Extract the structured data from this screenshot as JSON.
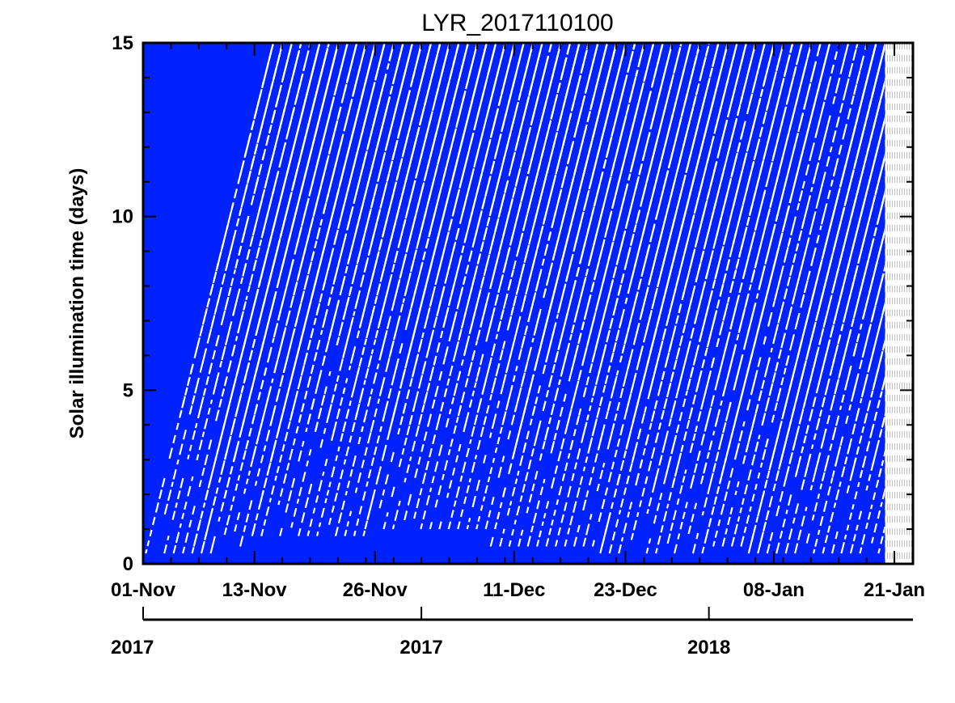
{
  "chart_data": {
    "type": "heatmap",
    "title": "LYR_2017110100",
    "ylabel": "Solar illumination time (days)",
    "xlabel": "",
    "x_start": "2017-11-01",
    "x_end": "2018-01-23",
    "ylim": [
      0,
      15
    ],
    "yticks": [
      0,
      5,
      10,
      15
    ],
    "y_minor_step": 1,
    "x_ticks": [
      {
        "label": "01-Nov",
        "date": "2017-11-01"
      },
      {
        "label": "13-Nov",
        "date": "2017-11-13"
      },
      {
        "label": "26-Nov",
        "date": "2017-11-26"
      },
      {
        "label": "11-Dec",
        "date": "2017-12-11"
      },
      {
        "label": "23-Dec",
        "date": "2017-12-23"
      },
      {
        "label": "08-Jan",
        "date": "2018-01-08"
      },
      {
        "label": "21-Jan",
        "date": "2018-01-21"
      }
    ],
    "year_axis": [
      {
        "label": "2017",
        "date": "2017-11-01"
      },
      {
        "label": "2017",
        "date": "2017-12-01"
      },
      {
        "label": "2018",
        "date": "2018-01-01"
      }
    ],
    "fill_color": "#0022ff",
    "trace_color": "#ffffff",
    "data_end_date": "2018-01-20",
    "bands": [
      {
        "start": "2017-11-01",
        "end": "2017-11-08",
        "values": [
          0.3,
          4.3,
          8.5,
          12.5
        ]
      },
      {
        "start": "2017-11-06",
        "end": "2017-11-12",
        "values": [
          0.5,
          3.0,
          5.5,
          8.0,
          10.8,
          13.5
        ]
      },
      {
        "start": "2017-11-12",
        "end": "2017-11-24",
        "values": [
          0.8,
          3.8,
          6.5,
          9.2,
          12.0
        ]
      },
      {
        "start": "2017-11-24",
        "end": "2017-12-08",
        "values": [
          1.0,
          4.0,
          6.8,
          9.8,
          12.8
        ]
      },
      {
        "start": "2017-12-08",
        "end": "2017-12-20",
        "values": [
          0.5,
          3.3,
          5.8,
          8.8,
          11.8
        ]
      },
      {
        "start": "2017-12-20",
        "end": "2017-12-31",
        "values": [
          0.3,
          2.3,
          5.0,
          8.2
        ]
      },
      {
        "start": "2017-12-31",
        "end": "2018-01-06",
        "values": [
          0.5,
          3.0
        ]
      },
      {
        "start": "2018-01-05",
        "end": "2018-01-20",
        "values": [
          0.3,
          2.5,
          5.0,
          7.5,
          10.0,
          12.5,
          14.8
        ]
      }
    ]
  }
}
